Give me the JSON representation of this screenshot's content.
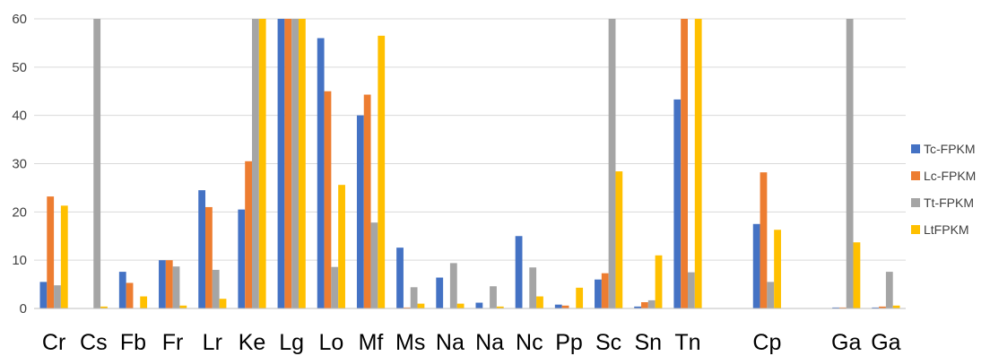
{
  "chart_data": {
    "type": "bar",
    "categories": [
      "Cr",
      "Cs",
      "Fb",
      "Fr",
      "Lr",
      "Ke",
      "Lg",
      "Lo",
      "Mf",
      "Ms",
      "Na",
      "Na",
      "Nc",
      "Pp",
      "Sc",
      "Sn",
      "Tn",
      "",
      "Cp",
      "",
      "Ga",
      "Ga"
    ],
    "series": [
      {
        "name": "Tc-FPKM",
        "color": "#4472C4",
        "values": [
          5.5,
          0,
          7.6,
          10,
          24.5,
          20.5,
          60,
          56,
          40,
          12.6,
          6.4,
          1.2,
          15,
          0.8,
          6,
          0.4,
          43.3,
          0,
          17.5,
          0,
          0.2,
          0.2
        ]
      },
      {
        "name": "Lc-FPKM",
        "color": "#ED7D31",
        "values": [
          23.2,
          0,
          5.3,
          10,
          21,
          30.5,
          60,
          45,
          44.3,
          0.2,
          0,
          0,
          0,
          0.6,
          7.3,
          1.3,
          60,
          0,
          28.2,
          0,
          0.2,
          0.4
        ]
      },
      {
        "name": "Tt-FPKM",
        "color": "#A5A5A5",
        "values": [
          4.8,
          60,
          0,
          8.7,
          8,
          60,
          60,
          8.6,
          17.8,
          4.4,
          9.4,
          4.6,
          8.5,
          0,
          60,
          1.7,
          7.5,
          0,
          5.5,
          0,
          60,
          7.6
        ]
      },
      {
        "name": "LtFPKM",
        "color": "#FFC000",
        "values": [
          21.3,
          0.4,
          2.5,
          0.6,
          2,
          60,
          60,
          25.6,
          56.5,
          1,
          1,
          0.4,
          2.5,
          4.3,
          28.4,
          11,
          60,
          0,
          16.3,
          0,
          13.7,
          0.6
        ]
      }
    ],
    "ylim": [
      0,
      60
    ],
    "yticks": [
      "0",
      "10",
      "20",
      "30",
      "40",
      "50",
      "60"
    ],
    "grid": true,
    "legend": "right"
  }
}
